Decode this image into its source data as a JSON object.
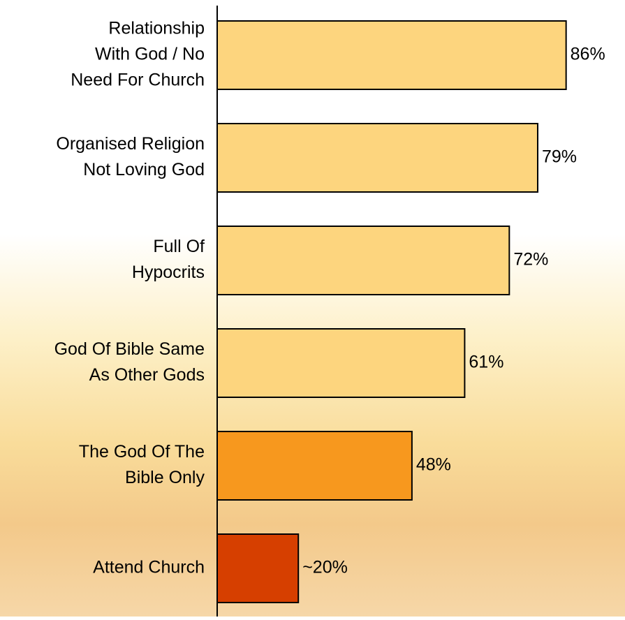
{
  "chart_data": {
    "type": "hbar",
    "categories": [
      [
        "Relationship",
        "With God / No",
        "Need For Church"
      ],
      [
        "Organised Religion",
        "Not Loving God"
      ],
      [
        "Full Of",
        "Hypocrits"
      ],
      [
        "God Of Bible Same",
        "As Other Gods"
      ],
      [
        "The God Of The",
        "Bible Only"
      ],
      [
        "Attend Church"
      ]
    ],
    "values": [
      86,
      79,
      72,
      61,
      48,
      20
    ],
    "value_labels": [
      "86%",
      "79%",
      "72%",
      "61%",
      "48%",
      "~20%"
    ],
    "colors": [
      "#fdd57e",
      "#fdd57e",
      "#fdd57e",
      "#fdd57e",
      "#f7981e",
      "#d63f00"
    ],
    "xlim": [
      0,
      100
    ]
  }
}
